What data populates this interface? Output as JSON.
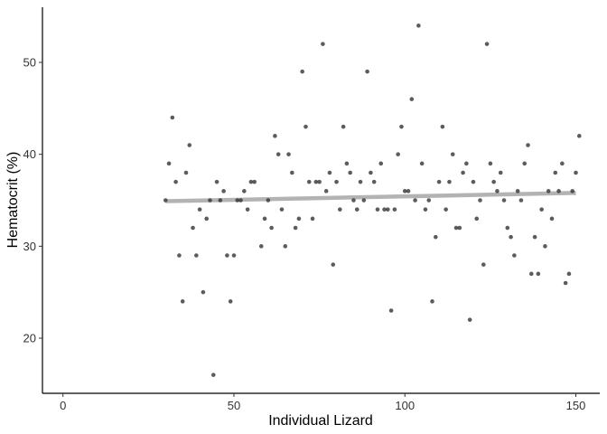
{
  "chart_data": {
    "type": "scatter",
    "title": "",
    "xlabel": "Individual Lizard",
    "ylabel": "Hematocrit (%)",
    "xlim": [
      -6,
      157
    ],
    "ylim": [
      14,
      56
    ],
    "xticks": [
      0,
      50,
      100,
      150
    ],
    "yticks": [
      20,
      30,
      40,
      50
    ],
    "grid": false,
    "legend": "none",
    "point_color": "#333333",
    "trend_color": "#b3b3b3",
    "trend_line": {
      "x": [
        30,
        150
      ],
      "y": [
        34.9,
        35.8
      ]
    },
    "points": [
      {
        "x": 30,
        "y": 35
      },
      {
        "x": 31,
        "y": 39
      },
      {
        "x": 32,
        "y": 44
      },
      {
        "x": 33,
        "y": 37
      },
      {
        "x": 34,
        "y": 29
      },
      {
        "x": 35,
        "y": 24
      },
      {
        "x": 36,
        "y": 38
      },
      {
        "x": 37,
        "y": 41
      },
      {
        "x": 38,
        "y": 32
      },
      {
        "x": 39,
        "y": 29
      },
      {
        "x": 40,
        "y": 34
      },
      {
        "x": 41,
        "y": 25
      },
      {
        "x": 42,
        "y": 33
      },
      {
        "x": 43,
        "y": 35
      },
      {
        "x": 44,
        "y": 16
      },
      {
        "x": 45,
        "y": 37
      },
      {
        "x": 46,
        "y": 35
      },
      {
        "x": 47,
        "y": 36
      },
      {
        "x": 48,
        "y": 29
      },
      {
        "x": 49,
        "y": 24
      },
      {
        "x": 50,
        "y": 29
      },
      {
        "x": 51,
        "y": 35
      },
      {
        "x": 52,
        "y": 35
      },
      {
        "x": 53,
        "y": 36
      },
      {
        "x": 54,
        "y": 34
      },
      {
        "x": 55,
        "y": 37
      },
      {
        "x": 56,
        "y": 37
      },
      {
        "x": 58,
        "y": 30
      },
      {
        "x": 59,
        "y": 33
      },
      {
        "x": 60,
        "y": 35
      },
      {
        "x": 61,
        "y": 32
      },
      {
        "x": 62,
        "y": 42
      },
      {
        "x": 63,
        "y": 40
      },
      {
        "x": 64,
        "y": 34
      },
      {
        "x": 65,
        "y": 30
      },
      {
        "x": 66,
        "y": 40
      },
      {
        "x": 67,
        "y": 38
      },
      {
        "x": 68,
        "y": 32
      },
      {
        "x": 69,
        "y": 33
      },
      {
        "x": 70,
        "y": 49
      },
      {
        "x": 71,
        "y": 43
      },
      {
        "x": 72,
        "y": 37
      },
      {
        "x": 73,
        "y": 33
      },
      {
        "x": 74,
        "y": 37
      },
      {
        "x": 75,
        "y": 37
      },
      {
        "x": 76,
        "y": 52
      },
      {
        "x": 77,
        "y": 36
      },
      {
        "x": 78,
        "y": 38
      },
      {
        "x": 79,
        "y": 28
      },
      {
        "x": 80,
        "y": 37
      },
      {
        "x": 81,
        "y": 34
      },
      {
        "x": 82,
        "y": 43
      },
      {
        "x": 83,
        "y": 39
      },
      {
        "x": 84,
        "y": 38
      },
      {
        "x": 85,
        "y": 35
      },
      {
        "x": 86,
        "y": 34
      },
      {
        "x": 87,
        "y": 37
      },
      {
        "x": 88,
        "y": 35
      },
      {
        "x": 89,
        "y": 49
      },
      {
        "x": 90,
        "y": 38
      },
      {
        "x": 91,
        "y": 37
      },
      {
        "x": 92,
        "y": 34
      },
      {
        "x": 93,
        "y": 39
      },
      {
        "x": 94,
        "y": 34
      },
      {
        "x": 95,
        "y": 34
      },
      {
        "x": 96,
        "y": 23
      },
      {
        "x": 97,
        "y": 34
      },
      {
        "x": 98,
        "y": 40
      },
      {
        "x": 99,
        "y": 43
      },
      {
        "x": 100,
        "y": 36
      },
      {
        "x": 101,
        "y": 36
      },
      {
        "x": 102,
        "y": 46
      },
      {
        "x": 103,
        "y": 35
      },
      {
        "x": 104,
        "y": 54
      },
      {
        "x": 105,
        "y": 39
      },
      {
        "x": 106,
        "y": 34
      },
      {
        "x": 107,
        "y": 35
      },
      {
        "x": 108,
        "y": 24
      },
      {
        "x": 109,
        "y": 31
      },
      {
        "x": 110,
        "y": 37
      },
      {
        "x": 111,
        "y": 43
      },
      {
        "x": 112,
        "y": 34
      },
      {
        "x": 113,
        "y": 37
      },
      {
        "x": 114,
        "y": 40
      },
      {
        "x": 115,
        "y": 32
      },
      {
        "x": 116,
        "y": 32
      },
      {
        "x": 117,
        "y": 38
      },
      {
        "x": 118,
        "y": 39
      },
      {
        "x": 119,
        "y": 22
      },
      {
        "x": 120,
        "y": 37
      },
      {
        "x": 121,
        "y": 33
      },
      {
        "x": 122,
        "y": 35
      },
      {
        "x": 123,
        "y": 28
      },
      {
        "x": 124,
        "y": 52
      },
      {
        "x": 125,
        "y": 39
      },
      {
        "x": 126,
        "y": 37
      },
      {
        "x": 127,
        "y": 36
      },
      {
        "x": 128,
        "y": 38
      },
      {
        "x": 129,
        "y": 35
      },
      {
        "x": 130,
        "y": 32
      },
      {
        "x": 131,
        "y": 31
      },
      {
        "x": 132,
        "y": 29
      },
      {
        "x": 133,
        "y": 36
      },
      {
        "x": 134,
        "y": 35
      },
      {
        "x": 135,
        "y": 39
      },
      {
        "x": 136,
        "y": 41
      },
      {
        "x": 137,
        "y": 27
      },
      {
        "x": 138,
        "y": 31
      },
      {
        "x": 139,
        "y": 27
      },
      {
        "x": 140,
        "y": 34
      },
      {
        "x": 141,
        "y": 30
      },
      {
        "x": 142,
        "y": 36
      },
      {
        "x": 143,
        "y": 33
      },
      {
        "x": 144,
        "y": 38
      },
      {
        "x": 145,
        "y": 36
      },
      {
        "x": 146,
        "y": 39
      },
      {
        "x": 147,
        "y": 26
      },
      {
        "x": 148,
        "y": 27
      },
      {
        "x": 149,
        "y": 36
      },
      {
        "x": 150,
        "y": 38
      },
      {
        "x": 151,
        "y": 42
      }
    ]
  }
}
